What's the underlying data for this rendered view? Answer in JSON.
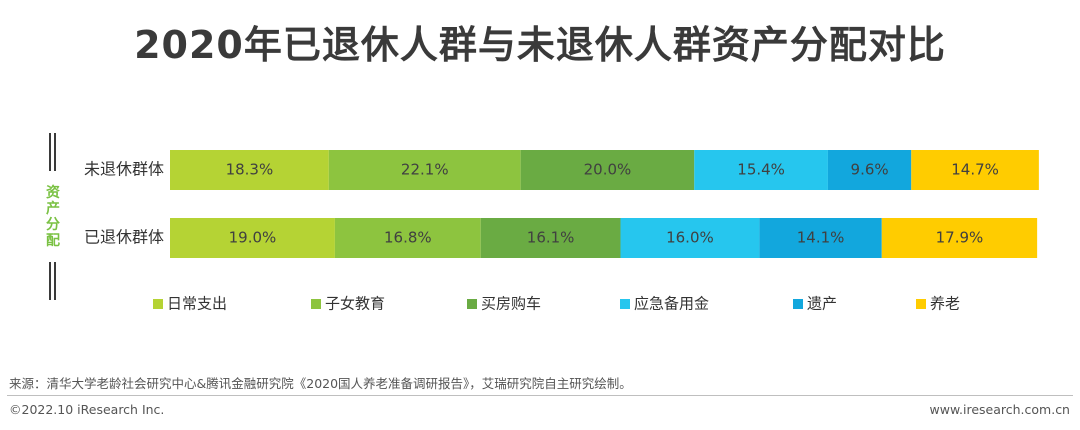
{
  "chart_data": {
    "type": "bar",
    "orientation": "horizontal",
    "stacked": true,
    "title": "2020年已退休人群与未退休人群资产分配对比",
    "ylabel": "资产分配",
    "xlabel": "",
    "xlim": [
      0,
      100
    ],
    "grid": false,
    "legend_position": "bottom",
    "categories": [
      "未退休群体",
      "已退休群体"
    ],
    "series": [
      {
        "name": "日常支出",
        "color": "#b5d334",
        "values": [
          18.3,
          19.0
        ],
        "labels": [
          "18.3%",
          "19.0%"
        ]
      },
      {
        "name": "子女教育",
        "color": "#8dc43f",
        "values": [
          22.1,
          16.8
        ],
        "labels": [
          "22.1%",
          "16.8%"
        ]
      },
      {
        "name": "买房购车",
        "color": "#6aab43",
        "values": [
          20.0,
          16.1
        ],
        "labels": [
          "20.0%",
          "16.1%"
        ]
      },
      {
        "name": "应急备用金",
        "color": "#26c6ee",
        "values": [
          15.4,
          16.0
        ],
        "labels": [
          "15.4%",
          "16.0%"
        ]
      },
      {
        "name": "遗产",
        "color": "#12a7dd",
        "values": [
          9.6,
          14.1
        ],
        "labels": [
          "9.6%",
          "14.1%"
        ]
      },
      {
        "name": "养老",
        "color": "#ffcc00",
        "values": [
          14.7,
          17.9
        ],
        "labels": [
          "14.7%",
          "17.9%"
        ]
      }
    ]
  },
  "footer": {
    "source": "来源：清华大学老龄社会研究中心&腾讯金融研究院《2020国人养老准备调研报告》，艾瑞研究院自主研究绘制。",
    "copyright": "©2022.10 iResearch Inc.",
    "url": "www.iresearch.com.cn"
  }
}
